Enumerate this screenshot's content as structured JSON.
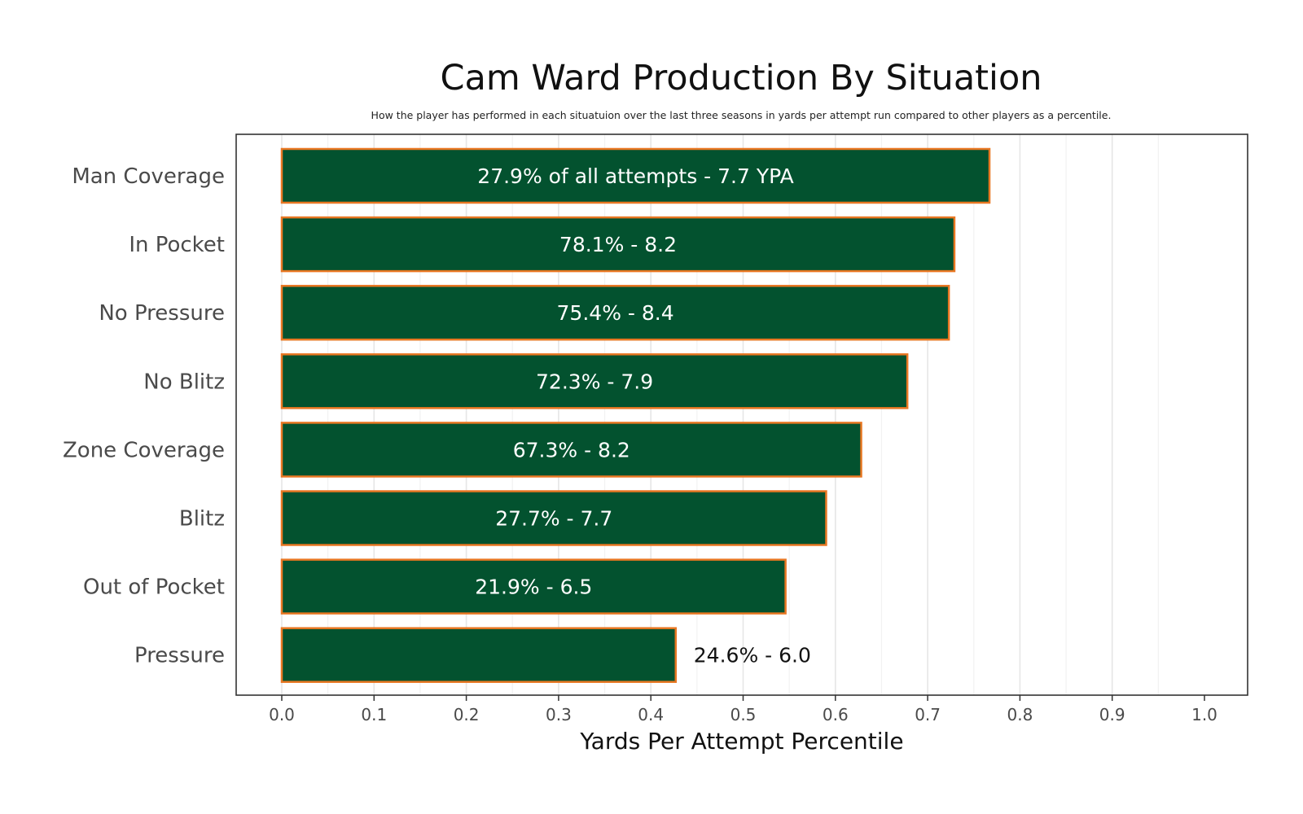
{
  "chart_data": {
    "type": "bar",
    "orientation": "horizontal",
    "title": "Cam Ward Production By Situation",
    "subtitle": "How the player has performed in each situatuion over the last three seasons in yards per attempt run compared to other players as a percentile.",
    "xlabel": "Yards Per Attempt Percentile",
    "ylabel": "",
    "xlim": [
      0,
      1.0
    ],
    "xticks": [
      "0.0",
      "0.1",
      "0.2",
      "0.3",
      "0.4",
      "0.5",
      "0.6",
      "0.7",
      "0.8",
      "0.9",
      "1.0"
    ],
    "grid": "vertical",
    "legend": "none",
    "bar_fill": "#03522F",
    "bar_outline": "#E87722",
    "label_inside_color": "#ffffff",
    "label_outside_color": "#111111",
    "categories": [
      "Man Coverage",
      "In Pocket",
      "No Pressure",
      "No Blitz",
      "Zone Coverage",
      "Blitz",
      "Out of Pocket",
      "Pressure"
    ],
    "values": [
      0.767,
      0.729,
      0.723,
      0.678,
      0.628,
      0.59,
      0.546,
      0.427
    ],
    "data_labels": [
      "27.9% of all attempts - 7.7 YPA",
      "78.1% - 8.2",
      "75.4% - 8.4",
      "72.3% - 7.9",
      "67.3% - 8.2",
      "27.7% - 7.7",
      "21.9% - 6.5",
      "24.6% - 6.0"
    ],
    "label_position": [
      "inside",
      "inside",
      "inside",
      "inside",
      "inside",
      "inside",
      "inside",
      "outside"
    ]
  }
}
